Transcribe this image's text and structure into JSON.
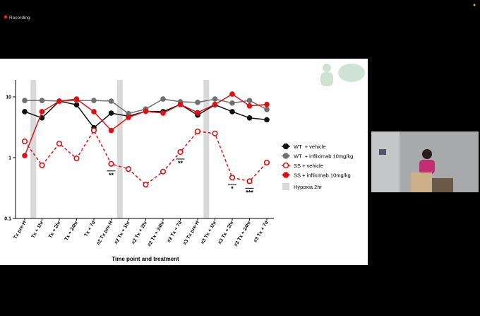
{
  "recording_label": "Recording",
  "chart_data": {
    "type": "line",
    "x_label": "Time point and treatment",
    "categories": [
      "Tx pre-H",
      "Tx + 1hr",
      "Tx + 2hr",
      "Tx + 24hr",
      "Tx + 7d",
      "#2 Tx pre-H",
      "#2 Tx + 1hr",
      "#2 Tx + 2hr",
      "#2 Tx + 24hr",
      "#2 Tx + 7d",
      "#3 Tx pre-H",
      "#3 Tx + 1hr",
      "#3 Tx + 2hr",
      "#3 Tx + 24hr",
      "#3 Tx + 7d"
    ],
    "log_scale": true,
    "ylim": [
      0.1,
      19
    ],
    "yticks": [
      0.1,
      1,
      10
    ],
    "series": [
      {
        "name": "WT  + vehicle",
        "color": "#111111",
        "marker": "filled",
        "dashed": false,
        "values": [
          5.7,
          4.5,
          8.5,
          7.4,
          3.1,
          5.4,
          4.8,
          5.8,
          5.7,
          7.5,
          5.0,
          7.4,
          5.7,
          4.5,
          4.2
        ]
      },
      {
        "name": "WT  + infliximab 10mg/kg",
        "color": "#707070",
        "marker": "filled",
        "dashed": false,
        "values": [
          8.7,
          8.7,
          8.5,
          8.7,
          8.7,
          8.5,
          5.3,
          6.3,
          9.2,
          8.3,
          8.1,
          9.2,
          7.9,
          8.7,
          6.2
        ]
      },
      {
        "name": "SS + vehicle",
        "color": "#e01010",
        "marker": "open",
        "dashed": true,
        "values": [
          1.85,
          0.75,
          1.7,
          0.97,
          2.8,
          0.79,
          0.65,
          0.36,
          0.59,
          1.24,
          2.7,
          2.5,
          0.47,
          0.41,
          0.83
        ]
      },
      {
        "name": "SS + infliximab 10mg/kg",
        "color": "#e01010",
        "marker": "filled",
        "dashed": false,
        "values": [
          1.08,
          5.7,
          8.5,
          9.2,
          5.7,
          2.8,
          4.6,
          5.8,
          5.4,
          7.5,
          5.5,
          7.5,
          11.1,
          7.1,
          7.5
        ]
      }
    ],
    "shaded_label": "Hypoxia 2hr",
    "shaded_color": "#d9d9d9",
    "shaded_after": [
      "Tx pre-H",
      "#2 Tx pre-H",
      "#3 Tx pre-H"
    ],
    "annotations": [
      {
        "text": "**",
        "category": "#2 Tx pre-H"
      },
      {
        "text": "**",
        "category": "#2 Tx + 7d"
      },
      {
        "text": "*",
        "category": "#3 Tx + 2hr"
      },
      {
        "text": "***",
        "category": "#3 Tx + 24hr"
      }
    ]
  }
}
